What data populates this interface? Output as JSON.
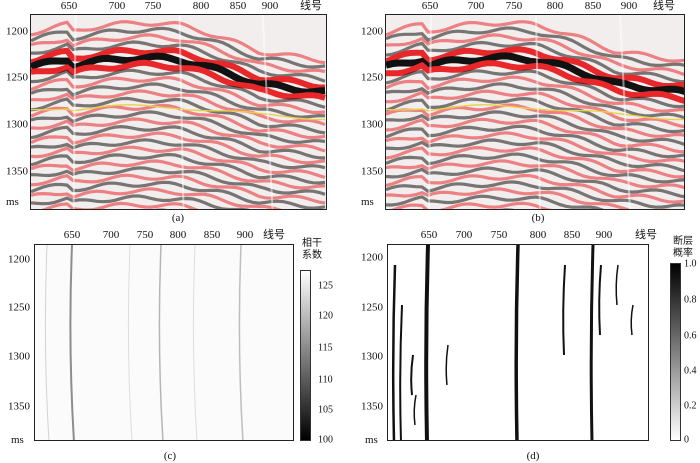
{
  "x_axis_label": "线号",
  "y_axis_unit": "ms",
  "x_ticks": [
    "650",
    "700",
    "750",
    "800",
    "850",
    "900"
  ],
  "y_ticks": [
    "1200",
    "1250",
    "1300",
    "1350"
  ],
  "panels": {
    "a": {
      "caption": "(a)"
    },
    "b": {
      "caption": "(b)"
    },
    "c": {
      "caption": "(c)",
      "colorbar_title_1": "相干",
      "colorbar_title_2": "系数",
      "colorbar_ticks": [
        "125",
        "120",
        "115",
        "110",
        "105",
        "100"
      ]
    },
    "d": {
      "caption": "(d)",
      "colorbar_title_1": "断层",
      "colorbar_title_2": "概率",
      "colorbar_ticks": [
        "1.0",
        "0.8",
        "0.6",
        "0.4",
        "0.2",
        "0"
      ]
    }
  },
  "colors": {
    "seismic_red": "#e8272a",
    "seismic_black": "#111111",
    "horizon": "#e6d24a"
  }
}
